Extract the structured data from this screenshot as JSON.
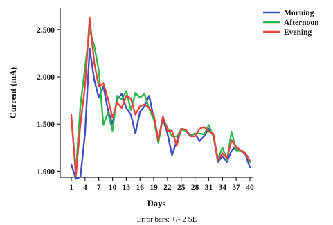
{
  "chart_data": {
    "type": "line",
    "xlabel": "Days",
    "ylabel": "Current (mA)",
    "note": "Error bars: +/- 2 SE",
    "xlim": [
      0,
      40
    ],
    "ylim": [
      0.9,
      2.8
    ],
    "yticks": [
      1.0,
      1.5,
      2.0,
      2.5
    ],
    "ytick_labels": [
      "1.000",
      "1.500",
      "2.000",
      "2.500"
    ],
    "xticks": [
      1,
      4,
      7,
      10,
      13,
      16,
      19,
      22,
      25,
      28,
      31,
      34,
      37,
      40
    ],
    "legend_position": "top-right",
    "x": [
      1,
      2,
      3,
      4,
      5,
      6,
      7,
      8,
      9,
      10,
      11,
      12,
      13,
      14,
      15,
      16,
      17,
      18,
      19,
      20,
      21,
      22,
      23,
      24,
      25,
      26,
      27,
      28,
      29,
      30,
      31,
      32,
      33,
      34,
      35,
      36,
      37,
      38,
      39,
      40
    ],
    "series": [
      {
        "name": "Morning",
        "color": "#3f4fbf",
        "values": [
          1.07,
          0.92,
          0.94,
          1.4,
          2.3,
          1.97,
          1.78,
          1.9,
          1.65,
          1.5,
          1.76,
          1.82,
          1.67,
          1.6,
          1.4,
          1.63,
          1.69,
          1.8,
          1.56,
          1.33,
          1.56,
          1.4,
          1.17,
          1.32,
          1.45,
          1.44,
          1.38,
          1.4,
          1.32,
          1.37,
          1.45,
          1.38,
          1.1,
          1.16,
          1.1,
          1.22,
          1.26,
          1.22,
          1.18,
          1.04
        ]
      },
      {
        "name": "Afternoon",
        "color": "#2fb84a",
        "values": [
          1.56,
          1.0,
          1.7,
          2.1,
          2.5,
          2.33,
          2.07,
          1.49,
          1.62,
          1.43,
          1.8,
          1.76,
          1.85,
          1.65,
          1.83,
          1.78,
          1.82,
          1.66,
          1.55,
          1.3,
          1.57,
          1.46,
          1.37,
          1.37,
          1.44,
          1.43,
          1.37,
          1.4,
          1.4,
          1.39,
          1.49,
          1.37,
          1.13,
          1.25,
          1.12,
          1.42,
          1.22,
          1.22,
          1.2,
          1.1
        ]
      },
      {
        "name": "Evening",
        "color": "#e8433f",
        "values": [
          1.6,
          0.95,
          1.5,
          1.9,
          2.63,
          2.15,
          1.9,
          1.93,
          1.77,
          1.57,
          1.73,
          1.67,
          1.8,
          1.77,
          1.6,
          1.69,
          1.71,
          1.67,
          1.6,
          1.33,
          1.58,
          1.43,
          1.43,
          1.27,
          1.45,
          1.44,
          1.37,
          1.37,
          1.45,
          1.47,
          1.42,
          1.4,
          1.12,
          1.19,
          1.14,
          1.33,
          1.26,
          1.22,
          1.19,
          1.11
        ]
      }
    ]
  }
}
